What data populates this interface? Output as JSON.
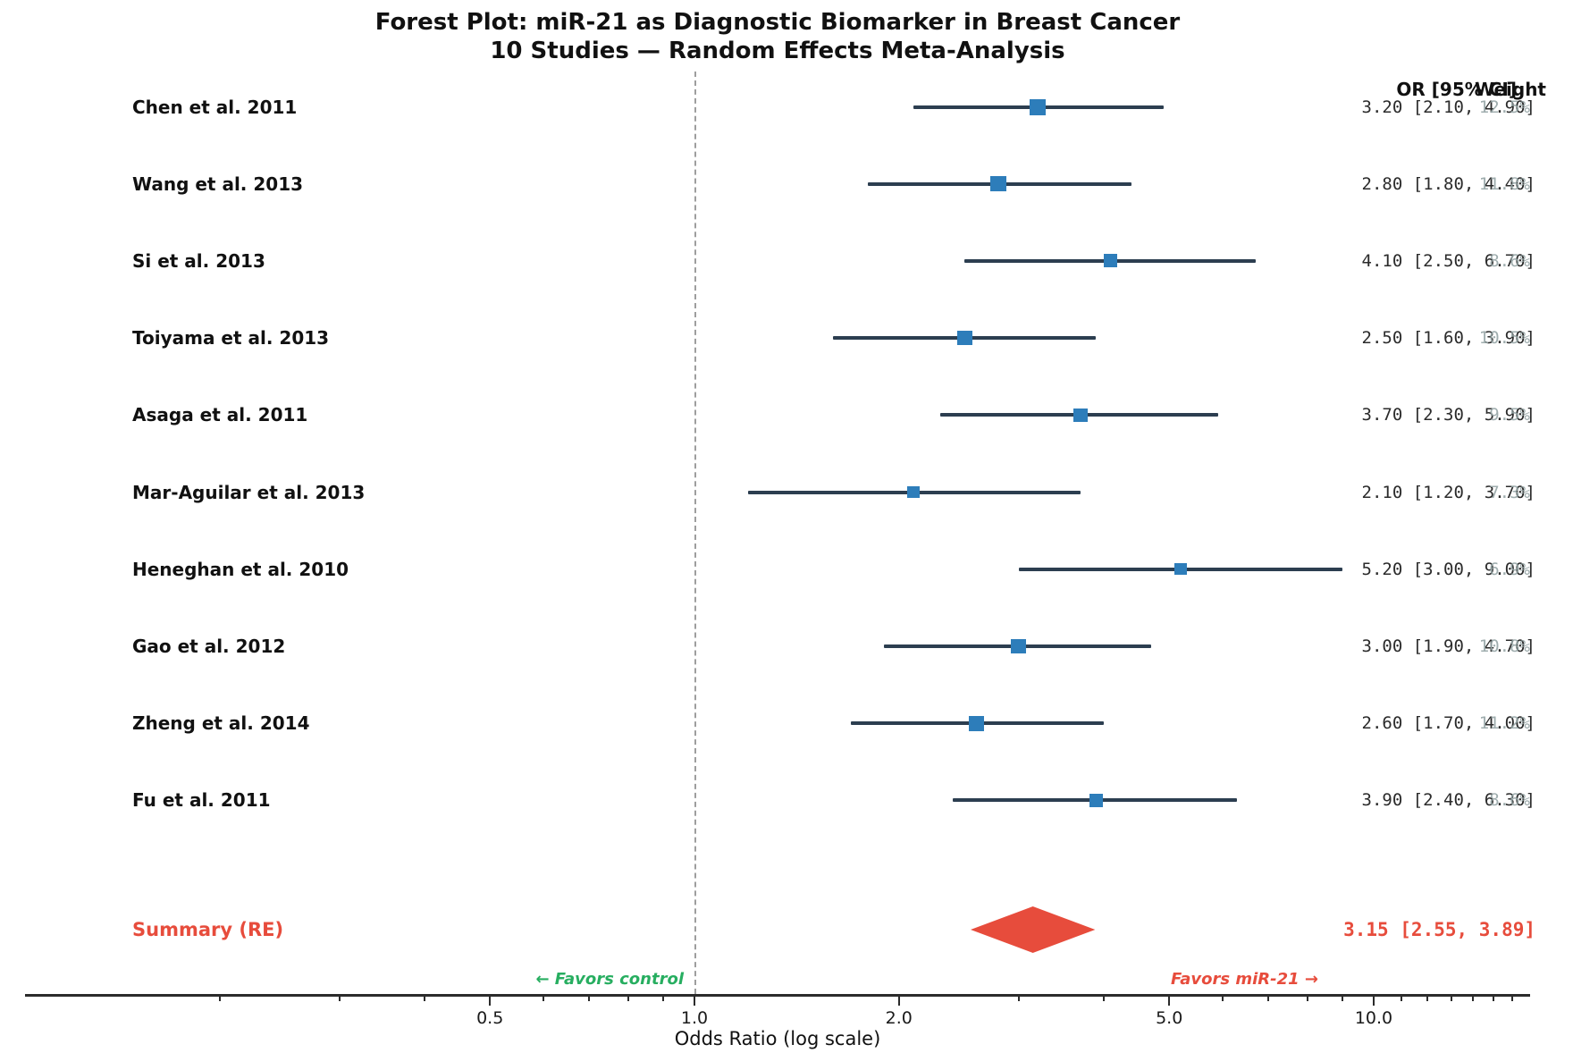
{
  "chart_data": {
    "type": "scatter",
    "subtype": "forest-plot",
    "title": "Forest Plot: miR-21 as Diagnostic Biomarker in Breast Cancer",
    "subtitle": "10 Studies — Random Effects Meta-Analysis",
    "xlabel": "Odds Ratio (log scale)",
    "x_scale": "log",
    "x_range": [
      0.1,
      17
    ],
    "x_ticks": [
      0.5,
      1.0,
      2.0,
      5.0,
      10.0
    ],
    "x_tick_labels": [
      "0.5",
      "1.0",
      "2.0",
      "5.0",
      "10.0"
    ],
    "x_minor_ticks": [
      0.2,
      0.3,
      0.4,
      0.6,
      0.7,
      0.8,
      0.9,
      3,
      4,
      6,
      7,
      8,
      9,
      11,
      12,
      13,
      14,
      15,
      16
    ],
    "reference_line": 1.0,
    "grid": false,
    "columns": {
      "or_header": "OR [95% CI]",
      "weight_header": "Weight"
    },
    "studies": [
      {
        "label": "Chen et al. 2011",
        "or": 3.2,
        "ci_low": 2.1,
        "ci_high": 4.9,
        "or_label": "3.20 [2.10, 4.90]",
        "weight_pct": 12.5,
        "weight_label": "12.5%"
      },
      {
        "label": "Wang et al. 2013",
        "or": 2.8,
        "ci_low": 1.8,
        "ci_high": 4.4,
        "or_label": "2.80 [1.80, 4.40]",
        "weight_pct": 11.8,
        "weight_label": "11.8%"
      },
      {
        "label": "Si et al. 2013",
        "or": 4.1,
        "ci_low": 2.5,
        "ci_high": 6.7,
        "or_label": "4.10 [2.50, 6.70]",
        "weight_pct": 8.6,
        "weight_label": "8.6%"
      },
      {
        "label": "Toiyama et al. 2013",
        "or": 2.5,
        "ci_low": 1.6,
        "ci_high": 3.9,
        "or_label": "2.50 [1.60, 3.90]",
        "weight_pct": 10.5,
        "weight_label": "10.5%"
      },
      {
        "label": "Asaga et al. 2011",
        "or": 3.7,
        "ci_low": 2.3,
        "ci_high": 5.9,
        "or_label": "3.70 [2.30, 5.90]",
        "weight_pct": 9.5,
        "weight_label": "9.5%"
      },
      {
        "label": "Mar-Aguilar et al. 2013",
        "or": 2.1,
        "ci_low": 1.2,
        "ci_high": 3.7,
        "or_label": "2.10 [1.20, 3.70]",
        "weight_pct": 7.3,
        "weight_label": "7.3%"
      },
      {
        "label": "Heneghan et al. 2010",
        "or": 5.2,
        "ci_low": 3.0,
        "ci_high": 9.0,
        "or_label": "5.20 [3.00, 9.00]",
        "weight_pct": 6.9,
        "weight_label": "6.9%"
      },
      {
        "label": "Gao et al. 2012",
        "or": 3.0,
        "ci_low": 1.9,
        "ci_high": 4.7,
        "or_label": "3.00 [1.90, 4.70]",
        "weight_pct": 10.8,
        "weight_label": "10.8%"
      },
      {
        "label": "Zheng et al. 2014",
        "or": 2.6,
        "ci_low": 1.7,
        "ci_high": 4.0,
        "or_label": "2.60 [1.70, 4.00]",
        "weight_pct": 11.2,
        "weight_label": "11.2%"
      },
      {
        "label": "Fu et al. 2011",
        "or": 3.9,
        "ci_low": 2.4,
        "ci_high": 6.3,
        "or_label": "3.90 [2.40, 6.30]",
        "weight_pct": 8.6,
        "weight_label": "8.6%"
      }
    ],
    "summary": {
      "label": "Summary (RE)",
      "or": 3.15,
      "ci_low": 2.55,
      "ci_high": 3.89,
      "or_label": "3.15 [2.55, 3.89]"
    },
    "annotations": {
      "favors_left": "← Favors control",
      "favors_right": "Favors miR-21 →"
    },
    "legend": null
  },
  "colors": {
    "marker": "#2D7DBA",
    "ci_line": "#2C3E50",
    "summary": "#E74C3C",
    "favors_left": "#27AE60",
    "favors_right": "#E74C3C",
    "weight_text": "#95A5A6",
    "reference_line": "#9E9E9E",
    "axis": "#2B2B2B"
  }
}
